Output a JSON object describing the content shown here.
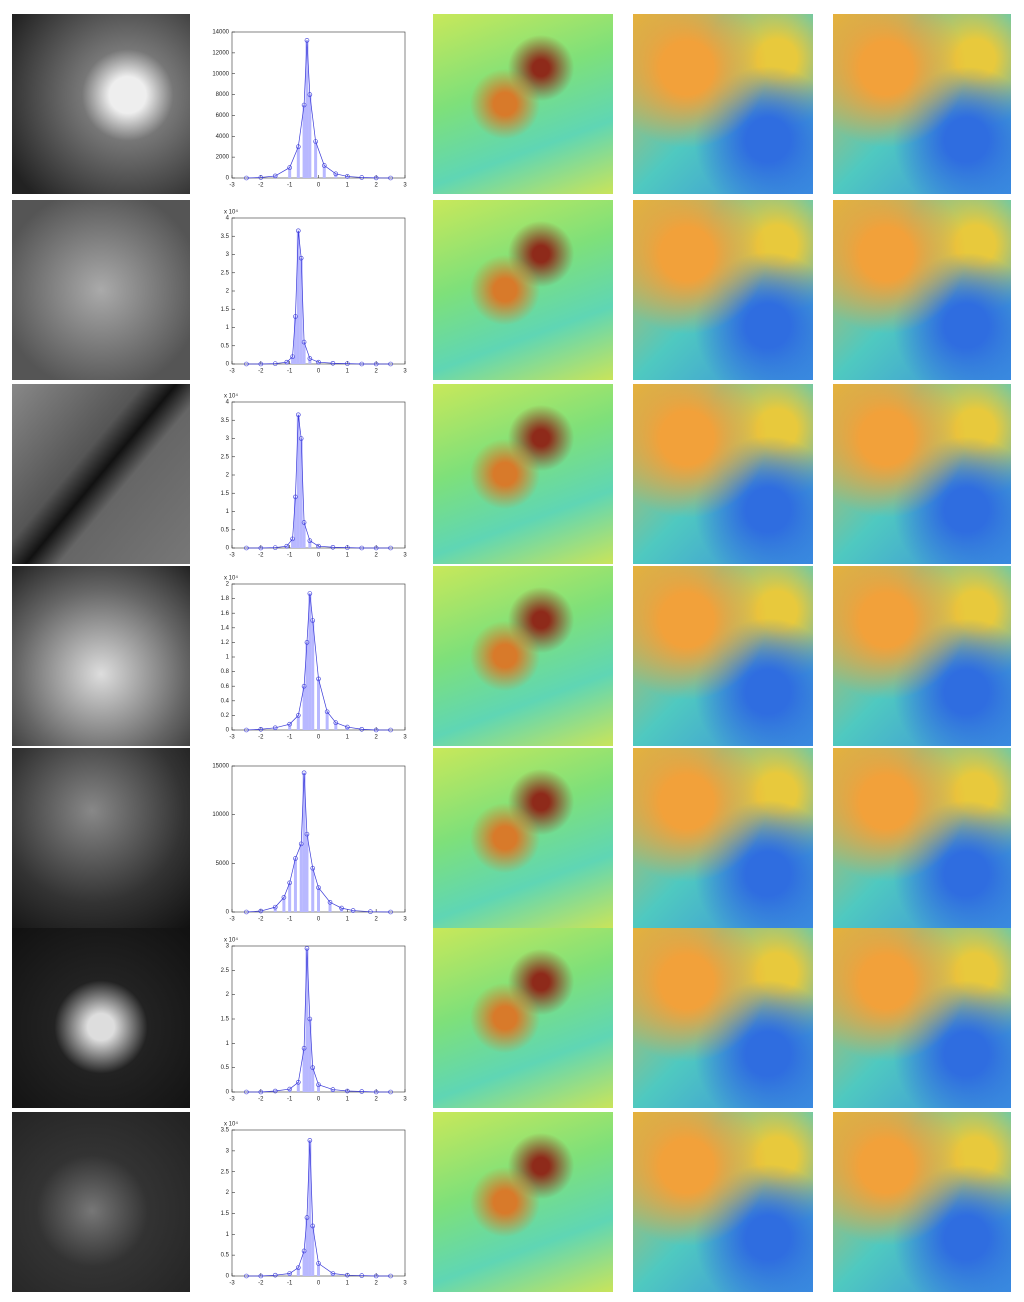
{
  "chart_data": [
    {
      "type": "histogram",
      "color": "#b8b8ff",
      "line_color": "#3a3ad8",
      "x": [
        -2.5,
        -2,
        -1.5,
        -1,
        -0.7,
        -0.5,
        -0.4,
        -0.3,
        -0.1,
        0.2,
        0.6,
        1,
        1.5,
        2,
        2.5
      ],
      "values": [
        0,
        50,
        200,
        1000,
        3000,
        7000,
        13200,
        8000,
        3500,
        1200,
        400,
        150,
        50,
        10,
        0
      ],
      "xlim": [
        -3,
        3
      ],
      "xticks": [
        -3,
        -2,
        -1,
        0,
        1,
        2,
        3
      ],
      "ylim": [
        0,
        14000
      ],
      "yticks": [
        0,
        2000,
        4000,
        6000,
        8000,
        10000,
        12000,
        14000
      ]
    },
    {
      "type": "histogram",
      "color": "#b8b8ff",
      "line_color": "#3a3ad8",
      "y_scale_label": "x 10⁴",
      "x": [
        -2.5,
        -2,
        -1.5,
        -1.1,
        -0.9,
        -0.8,
        -0.7,
        -0.6,
        -0.5,
        -0.3,
        0,
        0.5,
        1,
        1.5,
        2,
        2.5
      ],
      "values": [
        0,
        0,
        0.01,
        0.05,
        0.2,
        1.3,
        3.65,
        2.9,
        0.6,
        0.15,
        0.05,
        0.02,
        0.01,
        0,
        0,
        0
      ],
      "xlim": [
        -3,
        3
      ],
      "xticks": [
        -3,
        -2,
        -1,
        0,
        1,
        2,
        3
      ],
      "ylim": [
        0,
        4
      ],
      "yticks": [
        0,
        0.5,
        1,
        1.5,
        2,
        2.5,
        3,
        3.5,
        4
      ]
    },
    {
      "type": "histogram",
      "color": "#b8b8ff",
      "line_color": "#3a3ad8",
      "y_scale_label": "x 10⁴",
      "x": [
        -2.5,
        -2,
        -1.5,
        -1.1,
        -0.9,
        -0.8,
        -0.7,
        -0.6,
        -0.5,
        -0.3,
        0,
        0.5,
        1,
        1.5,
        2,
        2.5
      ],
      "values": [
        0,
        0,
        0.01,
        0.05,
        0.25,
        1.4,
        3.65,
        3.0,
        0.7,
        0.2,
        0.05,
        0.02,
        0.01,
        0,
        0,
        0
      ],
      "xlim": [
        -3,
        3
      ],
      "xticks": [
        -3,
        -2,
        -1,
        0,
        1,
        2,
        3
      ],
      "ylim": [
        0,
        4
      ],
      "yticks": [
        0,
        0.5,
        1,
        1.5,
        2,
        2.5,
        3,
        3.5,
        4
      ]
    },
    {
      "type": "histogram",
      "color": "#b8b8ff",
      "line_color": "#3a3ad8",
      "y_scale_label": "x 10⁴",
      "x": [
        -2.5,
        -2,
        -1.5,
        -1,
        -0.7,
        -0.5,
        -0.4,
        -0.3,
        -0.2,
        0,
        0.3,
        0.6,
        1,
        1.5,
        2,
        2.5
      ],
      "values": [
        0,
        0.01,
        0.03,
        0.08,
        0.2,
        0.6,
        1.2,
        1.87,
        1.5,
        0.7,
        0.25,
        0.1,
        0.04,
        0.01,
        0,
        0
      ],
      "xlim": [
        -3,
        3
      ],
      "xticks": [
        -3,
        -2,
        -1,
        0,
        1,
        2,
        3
      ],
      "ylim": [
        0,
        2
      ],
      "yticks": [
        0,
        0.2,
        0.4,
        0.6,
        0.8,
        1,
        1.2,
        1.4,
        1.6,
        1.8,
        2
      ]
    },
    {
      "type": "histogram",
      "color": "#b8b8ff",
      "line_color": "#3a3ad8",
      "x": [
        -2.5,
        -2,
        -1.5,
        -1.2,
        -1,
        -0.8,
        -0.6,
        -0.5,
        -0.4,
        -0.2,
        0,
        0.4,
        0.8,
        1.2,
        1.8,
        2.5
      ],
      "values": [
        0,
        100,
        500,
        1500,
        3000,
        5500,
        7000,
        14300,
        8000,
        4500,
        2500,
        1000,
        400,
        150,
        30,
        0
      ],
      "xlim": [
        -3,
        3
      ],
      "xticks": [
        -3,
        -2,
        -1,
        0,
        1,
        2,
        3
      ],
      "ylim": [
        0,
        15000
      ],
      "yticks": [
        0,
        5000,
        10000,
        15000
      ]
    },
    {
      "type": "histogram",
      "color": "#b8b8ff",
      "line_color": "#3a3ad8",
      "y_scale_label": "x 10⁴",
      "x": [
        -2.5,
        -2,
        -1.5,
        -1,
        -0.7,
        -0.5,
        -0.4,
        -0.3,
        -0.2,
        0,
        0.5,
        1,
        1.5,
        2,
        2.5
      ],
      "values": [
        0,
        0,
        0.02,
        0.06,
        0.2,
        0.9,
        2.95,
        1.5,
        0.5,
        0.15,
        0.05,
        0.02,
        0.01,
        0,
        0
      ],
      "xlim": [
        -3,
        3
      ],
      "xticks": [
        -3,
        -2,
        -1,
        0,
        1,
        2,
        3
      ],
      "ylim": [
        0,
        3
      ],
      "yticks": [
        0,
        0.5,
        1,
        1.5,
        2,
        2.5,
        3
      ]
    },
    {
      "type": "histogram",
      "color": "#b8b8ff",
      "line_color": "#3a3ad8",
      "y_scale_label": "x 10⁴",
      "x": [
        -2.5,
        -2,
        -1.5,
        -1,
        -0.7,
        -0.5,
        -0.4,
        -0.3,
        -0.2,
        0,
        0.5,
        1,
        1.5,
        2,
        2.5
      ],
      "values": [
        0,
        0,
        0.02,
        0.06,
        0.2,
        0.6,
        1.4,
        3.25,
        1.2,
        0.3,
        0.06,
        0.02,
        0.01,
        0,
        0
      ],
      "xlim": [
        -3,
        3
      ],
      "xticks": [
        -3,
        -2,
        -1,
        0,
        1,
        2,
        3
      ],
      "ylim": [
        0,
        3.5
      ],
      "yticks": [
        0,
        0.5,
        1,
        1.5,
        2,
        2.5,
        3,
        3.5
      ]
    }
  ]
}
